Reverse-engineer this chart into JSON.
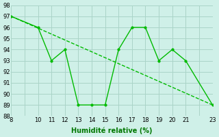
{
  "x": [
    8,
    10,
    11,
    12,
    13,
    14,
    15,
    16,
    17,
    18,
    19,
    20,
    21,
    23
  ],
  "y": [
    97,
    96,
    93,
    94,
    89,
    89,
    89,
    94,
    96,
    96,
    93,
    94,
    93,
    89
  ],
  "trend_x": [
    8,
    23
  ],
  "trend_y": [
    97,
    89
  ],
  "line_color": "#00bb00",
  "marker_color": "#00bb00",
  "bg_color": "#cff0e8",
  "grid_color": "#aad4c8",
  "xlabel": "Humidité relative (%)",
  "xlabel_color": "#007700",
  "tick_color": "#000000",
  "ylim": [
    88,
    98
  ],
  "xlim": [
    8,
    23
  ],
  "yticks": [
    88,
    89,
    90,
    91,
    92,
    93,
    94,
    95,
    96,
    97,
    98
  ],
  "xticks": [
    8,
    9,
    10,
    11,
    12,
    13,
    14,
    15,
    16,
    17,
    18,
    19,
    20,
    21,
    22,
    23
  ],
  "x_label_show": [
    8,
    10,
    11,
    12,
    13,
    14,
    15,
    16,
    17,
    18,
    19,
    20,
    21,
    23
  ]
}
